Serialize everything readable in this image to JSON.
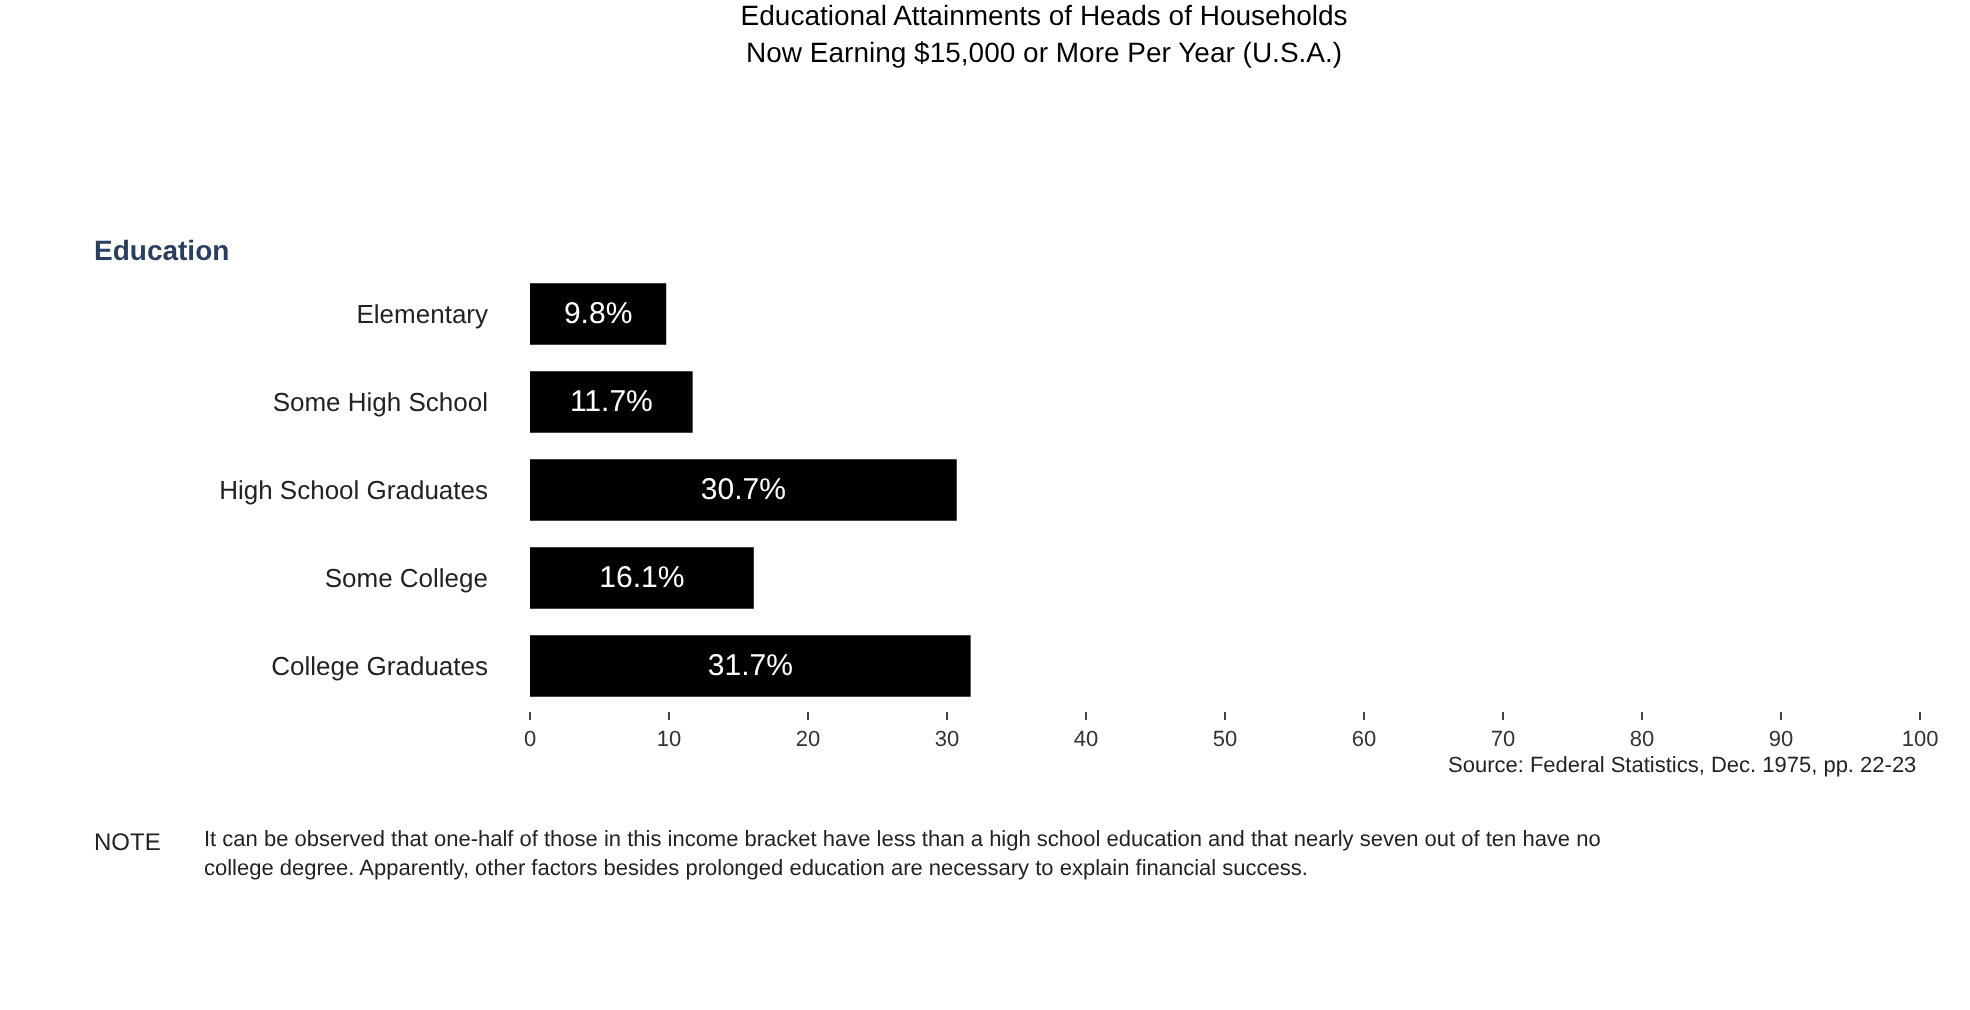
{
  "chart_data": {
    "type": "bar",
    "orientation": "horizontal",
    "title": "Educational Attainments of Heads of Households\nNow Earning $15,000 or More Per Year (U.S.A.)",
    "ylabel": "Education",
    "categories": [
      "Elementary",
      "Some High School",
      "High School Graduates",
      "Some College",
      "College Graduates"
    ],
    "values": [
      9.8,
      11.7,
      30.7,
      16.1,
      31.7
    ],
    "value_labels": [
      "9.8%",
      "11.7%",
      "30.7%",
      "16.1%",
      "31.7%"
    ],
    "color": "#000000",
    "xlim": [
      0,
      100
    ],
    "xticks": [
      0,
      10,
      20,
      30,
      40,
      50,
      60,
      70,
      80,
      90,
      100
    ],
    "annotations": [
      "Source: Federal Statistics, Dec. 1975, pp. 22-23",
      "NOTE",
      "It can be observed that one-half of those in this income bracket have less than a high school education and that nearly seven out of ten have no college degree. Apparently, other factors besides prolonged education are necessary to explain financial success."
    ]
  }
}
